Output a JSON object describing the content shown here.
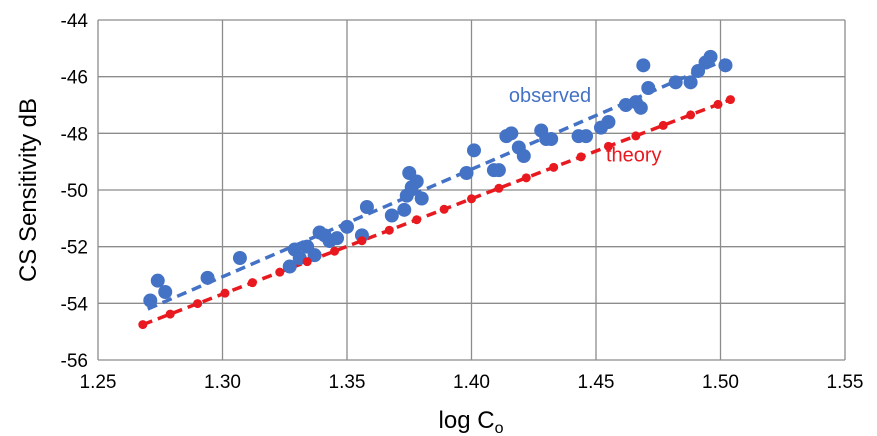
{
  "chart_data": {
    "type": "scatter",
    "xlabel": {
      "main": "log C",
      "sub": "o"
    },
    "ylabel": "CS Sensitivity  dB",
    "xlim": [
      1.25,
      1.55
    ],
    "ylim": [
      -56,
      -44
    ],
    "x_ticks": [
      "1.25",
      "1.30",
      "1.35",
      "1.40",
      "1.45",
      "1.50",
      "1.55"
    ],
    "y_ticks": [
      "-44",
      "-46",
      "-48",
      "-50",
      "-52",
      "-54",
      "-56"
    ],
    "grid": true,
    "series": [
      {
        "name": "observed",
        "color": "#4472C4",
        "marker": "large-dot",
        "points": [
          [
            1.271,
            -53.9
          ],
          [
            1.274,
            -53.2
          ],
          [
            1.277,
            -53.6
          ],
          [
            1.294,
            -53.1
          ],
          [
            1.307,
            -52.4
          ],
          [
            1.327,
            -52.7
          ],
          [
            1.329,
            -52.1
          ],
          [
            1.331,
            -52.4
          ],
          [
            1.334,
            -52.0
          ],
          [
            1.337,
            -52.3
          ],
          [
            1.339,
            -51.5
          ],
          [
            1.341,
            -51.6
          ],
          [
            1.343,
            -51.8
          ],
          [
            1.346,
            -51.7
          ],
          [
            1.35,
            -51.3
          ],
          [
            1.356,
            -51.6
          ],
          [
            1.358,
            -50.6
          ],
          [
            1.368,
            -50.9
          ],
          [
            1.373,
            -50.7
          ],
          [
            1.374,
            -50.2
          ],
          [
            1.375,
            -49.4
          ],
          [
            1.376,
            -49.9
          ],
          [
            1.378,
            -49.7
          ],
          [
            1.38,
            -50.3
          ],
          [
            1.398,
            -49.4
          ],
          [
            1.401,
            -48.6
          ],
          [
            1.409,
            -49.3
          ],
          [
            1.411,
            -49.3
          ],
          [
            1.414,
            -48.1
          ],
          [
            1.416,
            -48.0
          ],
          [
            1.419,
            -48.5
          ],
          [
            1.421,
            -48.8
          ],
          [
            1.428,
            -47.9
          ],
          [
            1.43,
            -48.2
          ],
          [
            1.432,
            -48.2
          ],
          [
            1.443,
            -48.1
          ],
          [
            1.446,
            -48.1
          ],
          [
            1.452,
            -47.8
          ],
          [
            1.455,
            -47.6
          ],
          [
            1.462,
            -47.0
          ],
          [
            1.466,
            -46.9
          ],
          [
            1.468,
            -47.1
          ],
          [
            1.469,
            -45.6
          ],
          [
            1.471,
            -46.4
          ],
          [
            1.482,
            -46.2
          ],
          [
            1.488,
            -46.2
          ],
          [
            1.491,
            -45.8
          ],
          [
            1.494,
            -45.5
          ],
          [
            1.496,
            -45.3
          ],
          [
            1.502,
            -45.6
          ]
        ],
        "trend": {
          "x": [
            1.27,
            1.502
          ],
          "y": [
            -54.2,
            -45.4
          ]
        }
      },
      {
        "name": "theory",
        "color": "#E8191F",
        "marker": "small-dot",
        "points": [
          [
            1.268,
            -54.75
          ],
          [
            1.279,
            -54.38
          ],
          [
            1.29,
            -54.01
          ],
          [
            1.301,
            -53.64
          ],
          [
            1.312,
            -53.27
          ],
          [
            1.323,
            -52.9
          ],
          [
            1.334,
            -52.53
          ],
          [
            1.345,
            -52.16
          ],
          [
            1.356,
            -51.79
          ],
          [
            1.367,
            -51.42
          ],
          [
            1.378,
            -51.05
          ],
          [
            1.389,
            -50.68
          ],
          [
            1.4,
            -50.31
          ],
          [
            1.411,
            -49.94
          ],
          [
            1.422,
            -49.57
          ],
          [
            1.433,
            -49.2
          ],
          [
            1.444,
            -48.83
          ],
          [
            1.455,
            -48.46
          ],
          [
            1.466,
            -48.09
          ],
          [
            1.477,
            -47.72
          ],
          [
            1.488,
            -47.35
          ],
          [
            1.499,
            -46.98
          ],
          [
            1.504,
            -46.81
          ]
        ],
        "trend": {
          "x": [
            1.268,
            1.504
          ],
          "y": [
            -54.75,
            -46.81
          ]
        }
      }
    ],
    "annotations": [
      {
        "text": "observed",
        "color": "#4472C4",
        "x": 1.415,
        "y": -46.9
      },
      {
        "text": "theory",
        "color": "#E8191F",
        "x": 1.454,
        "y": -49.0
      }
    ]
  }
}
